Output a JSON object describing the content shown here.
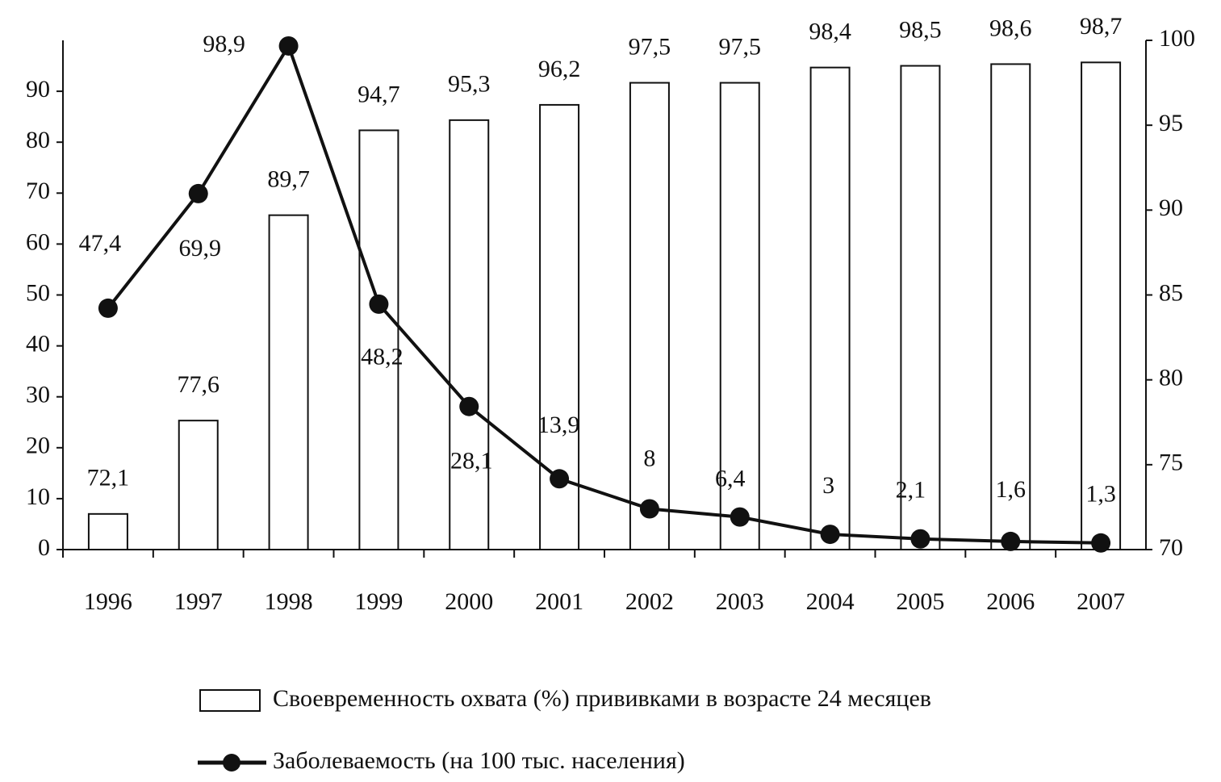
{
  "chart_data": {
    "type": "bar",
    "categories": [
      "1996",
      "1997",
      "1998",
      "1999",
      "2000",
      "2001",
      "2002",
      "2003",
      "2004",
      "2005",
      "2006",
      "2007"
    ],
    "series": [
      {
        "name": "Своевременность охвата (%) прививками в возрасте 24 месяцев",
        "type": "bar",
        "axis": "y2",
        "color": "#ffffff",
        "values": [
          72.1,
          77.6,
          89.7,
          94.7,
          95.3,
          96.2,
          97.5,
          97.5,
          98.4,
          98.5,
          98.6,
          98.7
        ],
        "value_labels": [
          "72,1",
          "77,6",
          "89,7",
          "94,7",
          "95,3",
          "96,2",
          "97,5",
          "97,5",
          "98,4",
          "98,5",
          "98,6",
          "98,7"
        ]
      },
      {
        "name": "Заболеваемость (на 100 тыс. населения)",
        "type": "line",
        "color": "#111111",
        "values": [
          47.4,
          69.9,
          98.9,
          48.2,
          28.1,
          13.9,
          8,
          6.4,
          3,
          2.1,
          1.6,
          1.3
        ],
        "value_labels": [
          "47,4",
          "69,9",
          "98,9",
          "48,2",
          "28,1",
          "13,9",
          "8",
          "6,4",
          "3",
          "2,1",
          "1,6",
          "1,3"
        ]
      }
    ],
    "ylim": [
      0,
      100
    ],
    "yticks": [
      0,
      10,
      20,
      30,
      40,
      50,
      60,
      70,
      80,
      90
    ],
    "y2lim": [
      70,
      100
    ],
    "y2ticks": [
      70,
      75,
      80,
      85,
      90,
      95,
      100
    ]
  }
}
